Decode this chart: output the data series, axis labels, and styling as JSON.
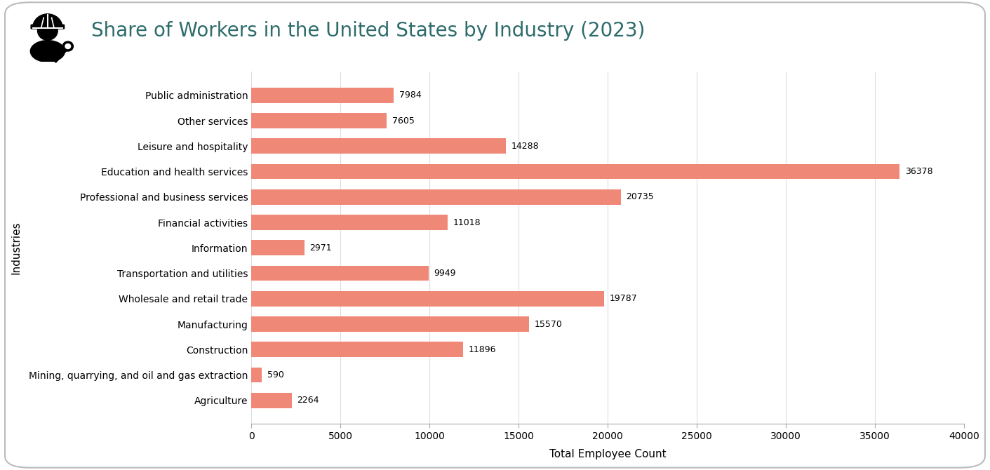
{
  "title": "Share of Workers in the United States by Industry (2023)",
  "xlabel": "Total Employee Count",
  "ylabel": "Industries",
  "categories": [
    "Agriculture",
    "Mining, quarrying, and oil and gas extraction",
    "Construction",
    "Manufacturing",
    "Wholesale and retail trade",
    "Transportation and utilities",
    "Information",
    "Financial activities",
    "Professional and business services",
    "Education and health services",
    "Leisure and hospitality",
    "Other services",
    "Public administration"
  ],
  "values": [
    2264,
    590,
    11896,
    15570,
    19787,
    9949,
    2971,
    11018,
    20735,
    36378,
    14288,
    7605,
    7984
  ],
  "bar_color": "#F08878",
  "title_color": "#2E6B6B",
  "bg_color": "#FFFFFF",
  "border_color": "#BBBBBB",
  "xlim": [
    0,
    40000
  ],
  "xticks": [
    0,
    5000,
    10000,
    15000,
    20000,
    25000,
    30000,
    35000,
    40000
  ],
  "title_fontsize": 20,
  "label_fontsize": 10,
  "tick_fontsize": 10,
  "value_fontsize": 9
}
